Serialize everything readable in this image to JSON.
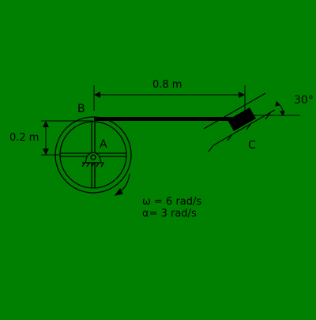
{
  "colors": {
    "background": "#008000",
    "ink": "#000000"
  },
  "labels": {
    "dim_horizontal": "0.8 m",
    "dim_vertical": "0.2 m",
    "point_b": "B",
    "point_a": "A",
    "point_c": "C",
    "angle": "30°",
    "omega": "ω = 6 rad/s",
    "alpha": "α= 3 rad/s"
  }
}
